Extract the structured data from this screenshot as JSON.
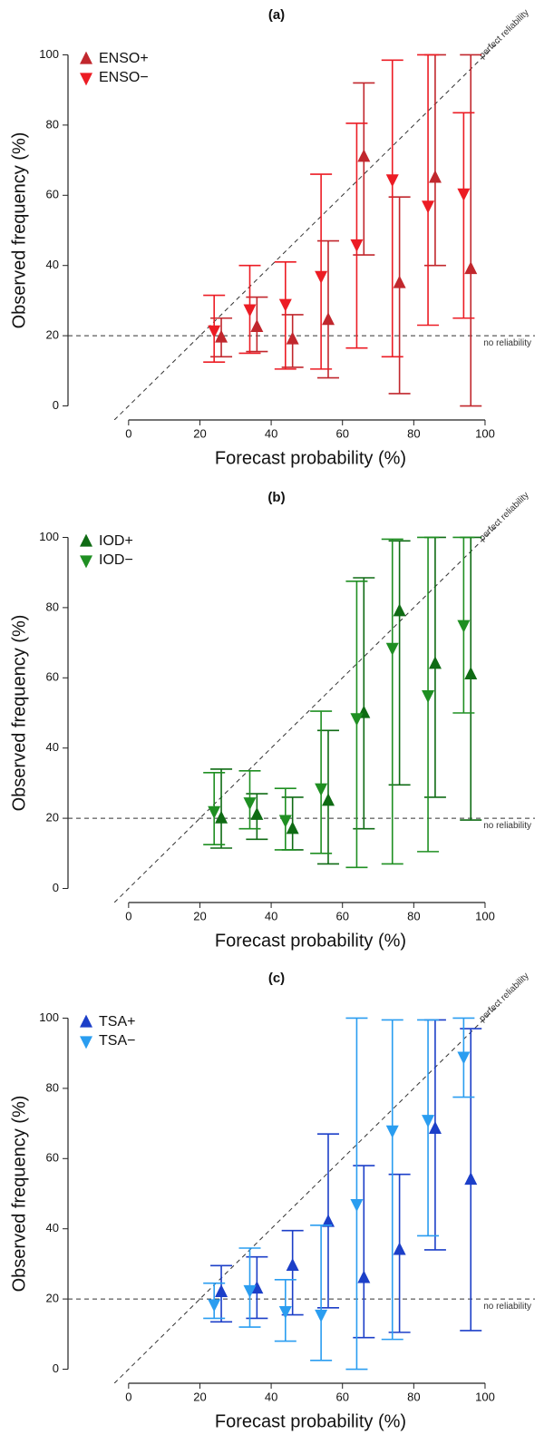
{
  "chart_data": [
    {
      "type": "scatter",
      "title": "(a)",
      "xlabel": "Forecast probability (%)",
      "ylabel": "Observed frequency (%)",
      "xlim": [
        -17,
        114
      ],
      "ylim": [
        -4,
        104
      ],
      "xticks": [
        0,
        20,
        40,
        60,
        80,
        100
      ],
      "yticks": [
        0,
        20,
        40,
        60,
        80,
        100
      ],
      "legend": "upper left",
      "diagonal": true,
      "hline": 20,
      "annotations": [
        "perfect reliability",
        "no reliability"
      ],
      "series": [
        {
          "name": "ENSO+",
          "color": "#c1272d",
          "marker": "triangle-up",
          "x": [
            26,
            36,
            46,
            56,
            66,
            76,
            86,
            96
          ],
          "values": [
            19.5,
            22.5,
            19,
            24.5,
            71,
            35,
            65,
            39
          ],
          "lower": [
            14,
            15.5,
            11,
            8,
            43,
            3.5,
            40,
            0
          ],
          "upper": [
            25,
            31,
            26,
            47,
            92,
            59.5,
            100,
            100
          ]
        },
        {
          "name": "ENSO−",
          "color": "#ec1c24",
          "marker": "triangle-down",
          "x": [
            24,
            34,
            44,
            54,
            64,
            74,
            84,
            94
          ],
          "values": [
            21.5,
            27.5,
            29,
            37,
            46,
            64.5,
            57,
            60.5
          ],
          "lower": [
            12.5,
            15,
            10.5,
            10.5,
            16.5,
            14,
            23,
            25
          ],
          "upper": [
            31.5,
            40,
            41,
            66,
            80.5,
            98.5,
            100,
            83.5
          ]
        }
      ]
    },
    {
      "type": "scatter",
      "title": "(b)",
      "xlabel": "Forecast probability (%)",
      "ylabel": "Observed frequency (%)",
      "xlim": [
        -17,
        114
      ],
      "ylim": [
        -4,
        104
      ],
      "xticks": [
        0,
        20,
        40,
        60,
        80,
        100
      ],
      "yticks": [
        0,
        20,
        40,
        60,
        80,
        100
      ],
      "legend": "upper left",
      "diagonal": true,
      "hline": 20,
      "annotations": [
        "perfect reliability",
        "no reliability"
      ],
      "series": [
        {
          "name": "IOD+",
          "color": "#0f6b14",
          "marker": "triangle-up",
          "x": [
            26,
            36,
            46,
            56,
            66,
            76,
            86,
            96
          ],
          "values": [
            20,
            21,
            17,
            25,
            50,
            79,
            64,
            61
          ],
          "lower": [
            11.5,
            14,
            11,
            7,
            17,
            29.5,
            26,
            19.5
          ],
          "upper": [
            34,
            27,
            26,
            45,
            88.5,
            99,
            100,
            100
          ]
        },
        {
          "name": "IOD−",
          "color": "#1f8f22",
          "marker": "triangle-down",
          "x": [
            24,
            34,
            44,
            54,
            64,
            74,
            84,
            94
          ],
          "values": [
            22,
            24.5,
            19.5,
            28.5,
            48.5,
            68.5,
            55,
            75
          ],
          "lower": [
            12.5,
            17,
            11,
            10,
            6,
            7,
            10.5,
            50
          ],
          "upper": [
            33,
            33.5,
            28.5,
            50.5,
            87.5,
            99.5,
            100,
            100
          ]
        }
      ]
    },
    {
      "type": "scatter",
      "title": "(c)",
      "xlabel": "Forecast probability (%)",
      "ylabel": "Observed frequency (%)",
      "xlim": [
        -17,
        114
      ],
      "ylim": [
        -4,
        104
      ],
      "xticks": [
        0,
        20,
        40,
        60,
        80,
        100
      ],
      "yticks": [
        0,
        20,
        40,
        60,
        80,
        100
      ],
      "legend": "upper left",
      "diagonal": true,
      "hline": 20,
      "annotations": [
        "perfect reliability",
        "no reliability"
      ],
      "series": [
        {
          "name": "TSA+",
          "color": "#1c3fc8",
          "marker": "triangle-up",
          "x": [
            26,
            36,
            46,
            56,
            66,
            76,
            86,
            96
          ],
          "values": [
            22,
            23,
            29.5,
            42,
            26,
            34,
            68.5,
            54
          ],
          "lower": [
            13.5,
            14.5,
            15.5,
            17.5,
            9,
            10.5,
            34,
            11
          ],
          "upper": [
            29.5,
            32,
            39.5,
            67,
            58,
            55.5,
            99.5,
            97
          ]
        },
        {
          "name": "TSA−",
          "color": "#2a9df0",
          "marker": "triangle-down",
          "x": [
            24,
            34,
            44,
            54,
            64,
            74,
            84,
            94
          ],
          "values": [
            18.5,
            22.5,
            16.5,
            15.5,
            47,
            68,
            71,
            89
          ],
          "lower": [
            14.5,
            12,
            8,
            2.5,
            0,
            8.5,
            38,
            77.5
          ],
          "upper": [
            24.5,
            34.5,
            25.5,
            41,
            100,
            99.5,
            99.5,
            100
          ]
        }
      ]
    }
  ]
}
